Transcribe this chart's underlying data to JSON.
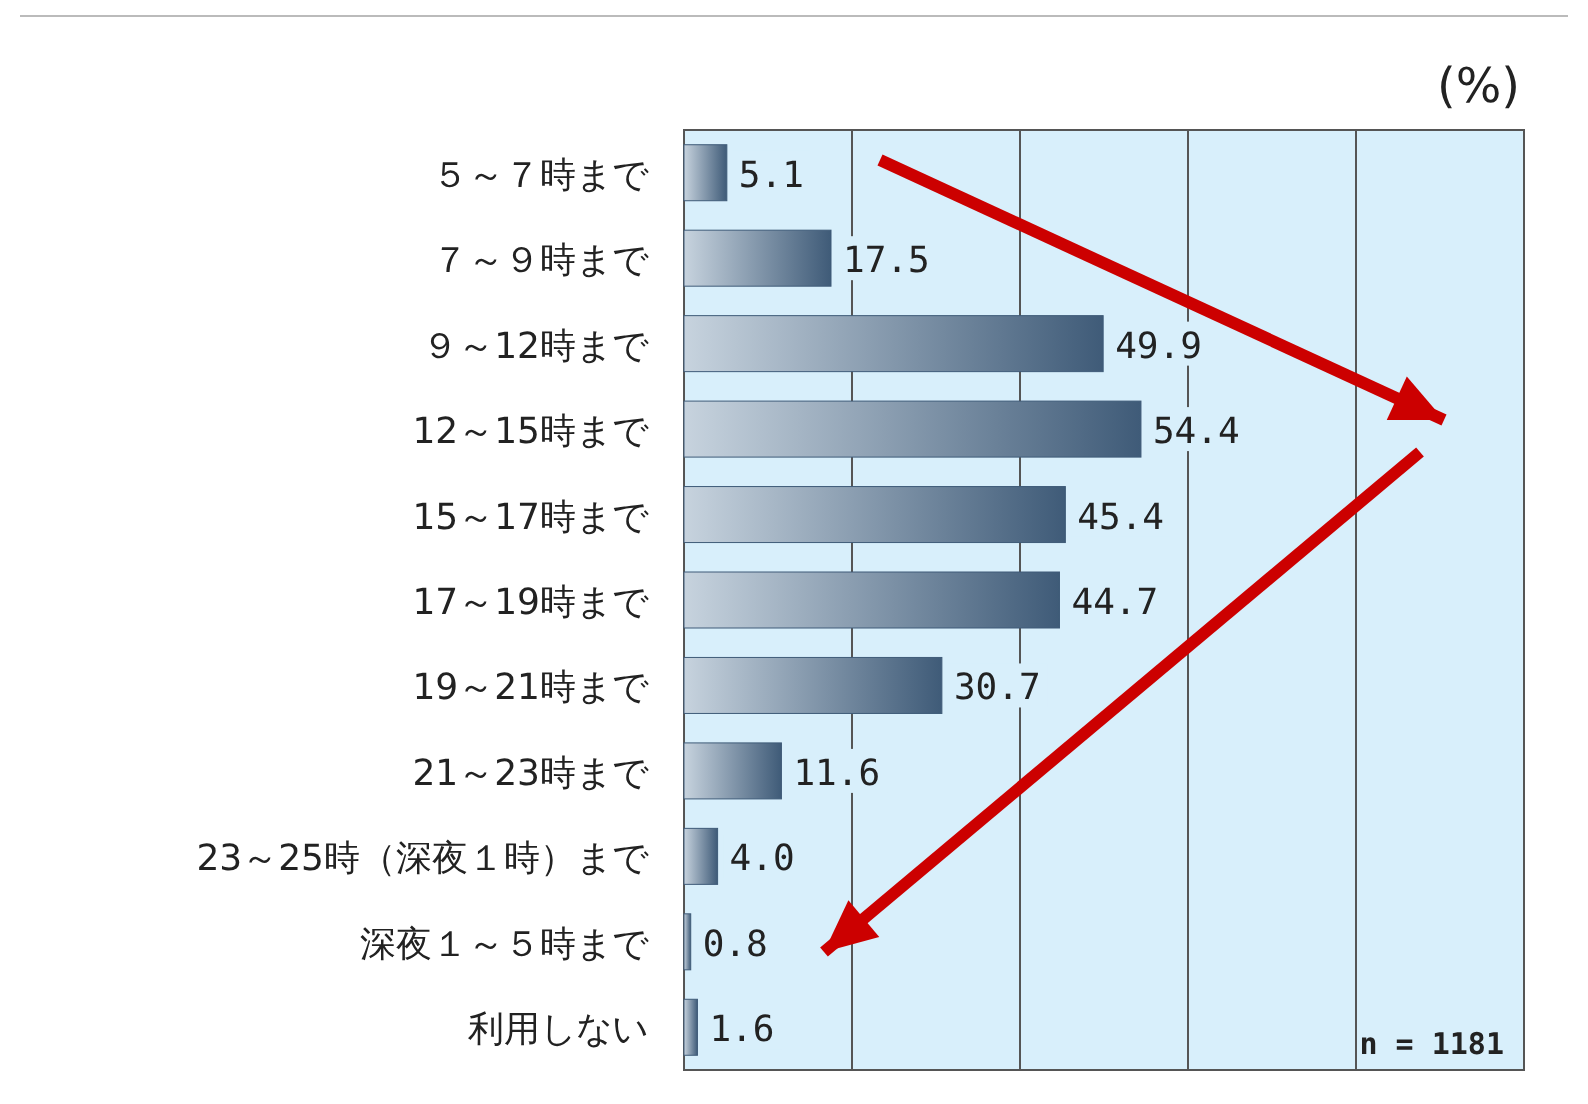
{
  "chart_data": {
    "type": "bar",
    "orientation": "horizontal",
    "xlabel": "(%)",
    "categories": [
      "５～７時まで",
      "７～９時まで",
      "９～12時まで",
      "12～15時まで",
      "15～17時まで",
      "17～19時まで",
      "19～21時まで",
      "21～23時まで",
      "23～25時（深夜１時）まで",
      "深夜１～５時まで",
      "利用しない"
    ],
    "values": [
      5.1,
      17.5,
      49.9,
      54.4,
      45.4,
      44.7,
      30.7,
      11.6,
      4.0,
      0.8,
      1.6
    ],
    "value_labels": [
      "5.1",
      "17.5",
      "49.9",
      "54.4",
      "45.4",
      "44.7",
      "30.7",
      "11.6",
      "4.0",
      "0.8",
      "1.6"
    ],
    "color": "#3f5b78",
    "xlim": [
      0,
      100
    ],
    "xticks": [
      {
        "value": 20,
        "label": null
      },
      {
        "value": 40,
        "label": null
      },
      {
        "value": 60,
        "label": null
      },
      {
        "value": 80,
        "label": null
      }
    ],
    "grid": "x",
    "tick_labels": "y",
    "annotations": [
      "n = 1181"
    ]
  }
}
